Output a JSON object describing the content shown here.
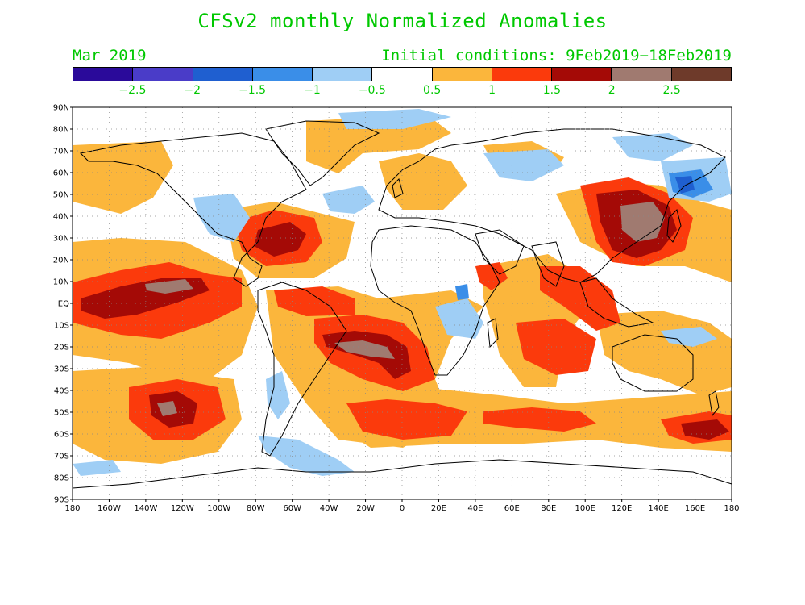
{
  "title": "CFSv2 monthly Normalized Anomalies",
  "month": "Mar 2019",
  "initial_conditions": "Initial conditions: 9Feb2019−18Feb2019",
  "colorbar": {
    "colors": [
      "#2a0a9a",
      "#4a3cc8",
      "#1f5fd0",
      "#3a8ee8",
      "#9fcef5",
      "#ffffff",
      "#fbb63c",
      "#fb3a0c",
      "#a40a06",
      "#a07a70",
      "#6e3a2a"
    ],
    "labels": [
      "−2.5",
      "−2",
      "−1.5",
      "−1",
      "−0.5",
      "0.5",
      "1",
      "1.5",
      "2",
      "2.5"
    ]
  },
  "axes": {
    "lat_labels": [
      "90N",
      "80N",
      "70N",
      "60N",
      "50N",
      "40N",
      "30N",
      "20N",
      "10N",
      "EQ",
      "10S",
      "20S",
      "30S",
      "40S",
      "50S",
      "60S",
      "70S",
      "80S",
      "90S"
    ],
    "lon_labels": [
      "180",
      "160W",
      "140W",
      "120W",
      "100W",
      "80W",
      "60W",
      "40W",
      "20W",
      "0",
      "20E",
      "40E",
      "60E",
      "80E",
      "100E",
      "120E",
      "140E",
      "160E",
      "180"
    ]
  }
}
